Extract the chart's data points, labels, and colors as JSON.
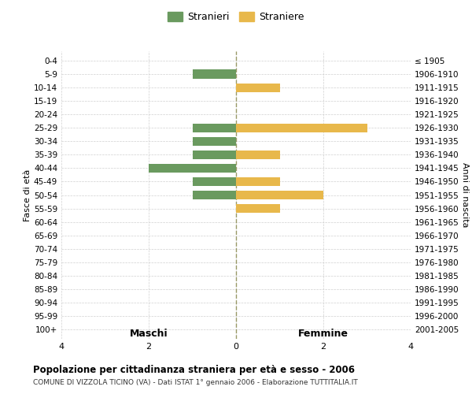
{
  "age_groups": [
    "0-4",
    "5-9",
    "10-14",
    "15-19",
    "20-24",
    "25-29",
    "30-34",
    "35-39",
    "40-44",
    "45-49",
    "50-54",
    "55-59",
    "60-64",
    "65-69",
    "70-74",
    "75-79",
    "80-84",
    "85-89",
    "90-94",
    "95-99",
    "100+"
  ],
  "birth_years": [
    "2001-2005",
    "1996-2000",
    "1991-1995",
    "1986-1990",
    "1981-1985",
    "1976-1980",
    "1971-1975",
    "1966-1970",
    "1961-1965",
    "1956-1960",
    "1951-1955",
    "1946-1950",
    "1941-1945",
    "1936-1940",
    "1931-1935",
    "1926-1930",
    "1921-1925",
    "1916-1920",
    "1911-1915",
    "1906-1910",
    "≤ 1905"
  ],
  "males": [
    0,
    1,
    0,
    0,
    0,
    1,
    1,
    1,
    2,
    1,
    1,
    0,
    0,
    0,
    0,
    0,
    0,
    0,
    0,
    0,
    0
  ],
  "females": [
    0,
    0,
    1,
    0,
    0,
    3,
    0,
    1,
    0,
    1,
    2,
    1,
    0,
    0,
    0,
    0,
    0,
    0,
    0,
    0,
    0
  ],
  "male_color": "#6a9a5f",
  "female_color": "#e8b84b",
  "male_label": "Stranieri",
  "female_label": "Straniere",
  "title": "Popolazione per cittadinanza straniera per età e sesso - 2006",
  "subtitle": "COMUNE DI VIZZOLA TICINO (VA) - Dati ISTAT 1° gennaio 2006 - Elaborazione TUTTITALIA.IT",
  "xlabel_left": "Maschi",
  "xlabel_right": "Femmine",
  "ylabel_left": "Fasce di età",
  "ylabel_right": "Anni di nascita",
  "xlim": 4,
  "background_color": "#ffffff",
  "grid_color": "#d0d0d0"
}
